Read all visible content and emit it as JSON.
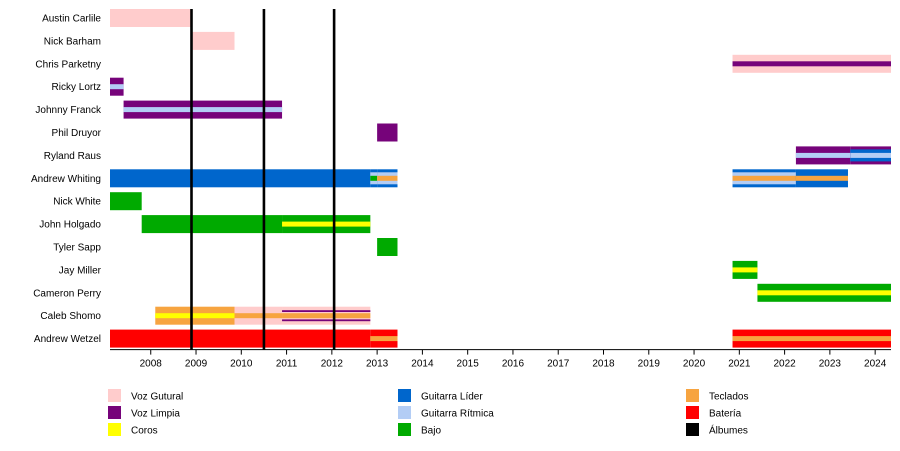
{
  "chart_data": {
    "type": "timeline",
    "title": "",
    "xlim": [
      2007.1,
      2024.35
    ],
    "x_ticks": [
      2008,
      2009,
      2010,
      2011,
      2012,
      2013,
      2014,
      2015,
      2016,
      2017,
      2018,
      2019,
      2020,
      2021,
      2022,
      2023,
      2024
    ],
    "albums": [
      2008.9,
      2010.5,
      2012.05
    ],
    "legend": [
      {
        "key": "voz_gutural",
        "label": "Voz Gutural",
        "color": "#ffcccc",
        "column": 0
      },
      {
        "key": "voz_limpia",
        "label": "Voz Limpia",
        "color": "#76037a",
        "column": 0
      },
      {
        "key": "coros",
        "label": "Coros",
        "color": "#ffff00",
        "column": 0
      },
      {
        "key": "guitarra_lider",
        "label": "Guitarra Líder",
        "color": "#0066cc",
        "column": 1
      },
      {
        "key": "guitarra_ritmica",
        "label": "Guitarra Rítmica",
        "color": "#b3cdf5",
        "column": 1
      },
      {
        "key": "bajo",
        "label": "Bajo",
        "color": "#00aa00",
        "column": 1
      },
      {
        "key": "teclados",
        "label": "Teclados",
        "color": "#f7a440",
        "column": 2
      },
      {
        "key": "bateria",
        "label": "Batería",
        "color": "#ff0000",
        "column": 2
      },
      {
        "key": "albumes",
        "label": "Álbumes",
        "color": "#000000",
        "column": 2
      }
    ],
    "members": [
      {
        "name": "Austin Carlile",
        "segments": [
          {
            "start": 2007.1,
            "end": 2008.9,
            "base": "voz_gutural"
          }
        ]
      },
      {
        "name": "Nick Barham",
        "segments": [
          {
            "start": 2008.9,
            "end": 2009.85,
            "base": "voz_gutural"
          }
        ]
      },
      {
        "name": "Chris Parketny",
        "segments": [
          {
            "start": 2020.85,
            "end": 2024.35,
            "base": "voz_gutural",
            "stripe": "voz_limpia"
          }
        ]
      },
      {
        "name": "Ricky Lortz",
        "segments": [
          {
            "start": 2007.1,
            "end": 2007.4,
            "base": "voz_limpia",
            "stripe": "guitarra_ritmica"
          }
        ]
      },
      {
        "name": "Johnny Franck",
        "segments": [
          {
            "start": 2007.4,
            "end": 2010.9,
            "base": "voz_limpia",
            "stripe": "guitarra_ritmica"
          }
        ]
      },
      {
        "name": "Phil Druyor",
        "segments": [
          {
            "start": 2013.0,
            "end": 2013.45,
            "base": "voz_limpia"
          }
        ]
      },
      {
        "name": "Ryland Raus",
        "segments": [
          {
            "start": 2022.25,
            "end": 2023.45,
            "base": "voz_limpia",
            "stripe": "guitarra_ritmica"
          },
          {
            "start": 2023.45,
            "end": 2024.35,
            "base": "voz_limpia",
            "inner": "guitarra_lider",
            "stripe": "guitarra_ritmica"
          }
        ]
      },
      {
        "name": "Andrew Whiting",
        "segments": [
          {
            "start": 2007.1,
            "end": 2012.85,
            "base": "guitarra_lider"
          },
          {
            "start": 2012.85,
            "end": 2013.0,
            "base": "guitarra_lider",
            "inner": "guitarra_ritmica",
            "stripe": "bajo"
          },
          {
            "start": 2013.0,
            "end": 2013.45,
            "base": "guitarra_lider",
            "inner": "guitarra_ritmica",
            "stripe": "teclados"
          },
          {
            "start": 2020.85,
            "end": 2022.25,
            "base": "guitarra_lider",
            "inner": "guitarra_ritmica",
            "stripe": "teclados"
          },
          {
            "start": 2022.25,
            "end": 2023.4,
            "base": "guitarra_lider",
            "stripe": "teclados"
          }
        ]
      },
      {
        "name": "Nick White",
        "segments": [
          {
            "start": 2007.1,
            "end": 2007.8,
            "base": "bajo"
          }
        ]
      },
      {
        "name": "John Holgado",
        "segments": [
          {
            "start": 2007.8,
            "end": 2010.9,
            "base": "bajo"
          },
          {
            "start": 2010.9,
            "end": 2012.85,
            "base": "bajo",
            "stripe": "coros"
          }
        ]
      },
      {
        "name": "Tyler Sapp",
        "segments": [
          {
            "start": 2013.0,
            "end": 2013.45,
            "base": "bajo"
          }
        ]
      },
      {
        "name": "Jay Miller",
        "segments": [
          {
            "start": 2020.85,
            "end": 2021.4,
            "base": "bajo",
            "stripe": "coros"
          }
        ]
      },
      {
        "name": "Cameron Perry",
        "segments": [
          {
            "start": 2021.4,
            "end": 2024.35,
            "base": "bajo",
            "stripe": "coros"
          }
        ]
      },
      {
        "name": "Caleb Shomo",
        "segments": [
          {
            "start": 2008.1,
            "end": 2009.85,
            "base": "teclados",
            "stripe": "coros"
          },
          {
            "start": 2009.85,
            "end": 2010.9,
            "base": "voz_gutural",
            "stripe": "teclados"
          },
          {
            "start": 2010.9,
            "end": 2012.85,
            "base": "voz_gutural",
            "stripe": "teclados",
            "border": "voz_limpia"
          }
        ]
      },
      {
        "name": "Andrew Wetzel",
        "segments": [
          {
            "start": 2007.1,
            "end": 2012.85,
            "base": "bateria"
          },
          {
            "start": 2012.85,
            "end": 2013.45,
            "base": "bateria",
            "stripe": "teclados"
          },
          {
            "start": 2020.85,
            "end": 2024.35,
            "base": "bateria",
            "stripe": "teclados"
          }
        ]
      }
    ]
  }
}
